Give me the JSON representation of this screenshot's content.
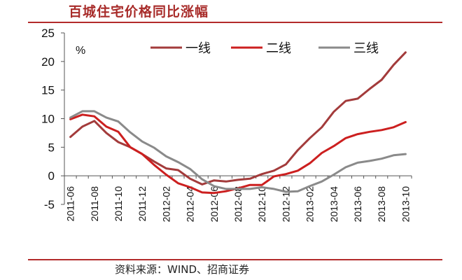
{
  "header": {
    "title": "百城住宅价格同比涨幅"
  },
  "footer": {
    "source": "资料来源：WIND、招商证券"
  },
  "chart_data": {
    "type": "line",
    "title": "百城住宅价格同比涨幅",
    "unit": "%",
    "xlabel": "",
    "ylabel": "",
    "ylim": [
      -5,
      25
    ],
    "yticks": [
      -5,
      0,
      5,
      10,
      15,
      20,
      25
    ],
    "x": [
      "2011-06",
      "2011-07",
      "2011-08",
      "2011-09",
      "2011-10",
      "2011-11",
      "2011-12",
      "2012-01",
      "2012-02",
      "2012-03",
      "2012-04",
      "2012-05",
      "2012-06",
      "2012-07",
      "2012-08",
      "2012-09",
      "2012-10",
      "2012-11",
      "2012-12",
      "2013-01",
      "2013-02",
      "2013-03",
      "2013-04",
      "2013-05",
      "2013-06",
      "2013-07",
      "2013-08",
      "2013-09",
      "2013-10"
    ],
    "xtick_labels": [
      "2011-06",
      "2011-08",
      "2011-10",
      "2011-12",
      "2012-02",
      "2012-04",
      "2012-06",
      "2012-08",
      "2012-10",
      "2012-12",
      "2013-02",
      "2013-04",
      "2013-06",
      "2013-08",
      "2013-10"
    ],
    "grid": false,
    "legend": "top",
    "series": [
      {
        "name": "一线",
        "color": "#a33b3b",
        "values": [
          6.8,
          8.6,
          9.6,
          7.5,
          5.9,
          5.0,
          3.8,
          2.5,
          1.3,
          1.0,
          -0.5,
          -1.5,
          -0.8,
          -1.0,
          -0.7,
          -0.5,
          0.3,
          0.9,
          2.0,
          4.5,
          6.6,
          8.5,
          11.2,
          13.1,
          13.5,
          15.2,
          16.8,
          19.4,
          21.6
        ]
      },
      {
        "name": "二线",
        "color": "#cc1f1f",
        "values": [
          9.9,
          10.7,
          10.4,
          8.6,
          7.7,
          5.0,
          3.8,
          1.9,
          0.2,
          -1.3,
          -2.0,
          -2.9,
          -3.0,
          -2.7,
          -2.2,
          -1.6,
          -1.6,
          -0.1,
          0.3,
          0.9,
          2.2,
          4.0,
          5.2,
          6.6,
          7.3,
          7.7,
          8.0,
          8.5,
          9.4
        ]
      },
      {
        "name": "三线",
        "color": "#8a8a8a",
        "values": [
          10.2,
          11.3,
          11.3,
          10.2,
          9.5,
          7.6,
          6.0,
          4.9,
          3.4,
          2.4,
          1.2,
          -0.6,
          -1.8,
          -2.3,
          -2.3,
          -2.3,
          -2.0,
          -2.3,
          -2.8,
          -2.7,
          -1.8,
          -1.0,
          0.2,
          1.5,
          2.3,
          2.6,
          3.0,
          3.6,
          3.8
        ]
      }
    ]
  }
}
